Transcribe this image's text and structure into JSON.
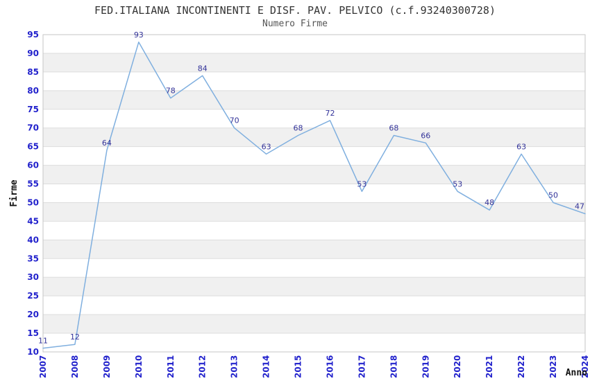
{
  "chart_data": {
    "type": "line",
    "title": "FED.ITALIANA INCONTINENTI E DISF. PAV. PELVICO (c.f.93240300728)",
    "subtitle": "Numero Firme",
    "xlabel": "Anno",
    "ylabel": "Firme",
    "categories": [
      "2007",
      "2008",
      "2009",
      "2010",
      "2011",
      "2012",
      "2013",
      "2014",
      "2015",
      "2016",
      "2017",
      "2018",
      "2019",
      "2020",
      "2021",
      "2022",
      "2023",
      "2024"
    ],
    "values": [
      11,
      12,
      64,
      93,
      78,
      84,
      70,
      63,
      68,
      72,
      53,
      68,
      66,
      53,
      48,
      63,
      50,
      47
    ],
    "ylim": [
      10,
      95
    ],
    "ytick_step": 5,
    "y_ticks": [
      10,
      15,
      20,
      25,
      30,
      35,
      40,
      45,
      50,
      55,
      60,
      65,
      70,
      75,
      80,
      85,
      90,
      95
    ],
    "grid": true,
    "legend": false,
    "band_shading": true,
    "colors": {
      "line": "#7FAFDF",
      "data_label": "#333399",
      "tick_label": "#2222CC",
      "title": "#333333",
      "subtitle": "#555555",
      "axis_title": "#111111",
      "band_alt": "#F0F0F0",
      "gridline": "#DDDDDD",
      "border": "#C6C6C6",
      "background": "#FFFFFF"
    }
  }
}
